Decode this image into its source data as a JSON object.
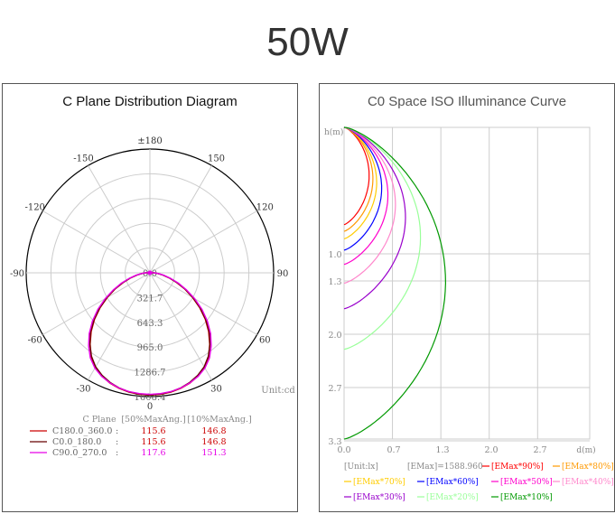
{
  "header": {
    "title": "50W"
  },
  "chart_data": [
    {
      "type": "polar",
      "title": "C Plane Distribution Diagram",
      "unit_label": "Unit:cd",
      "angle_labels": [
        "±180",
        "150",
        "120",
        "90",
        "60",
        "30",
        "0",
        "-30",
        "-60",
        "-90",
        "-120",
        "-150"
      ],
      "radial_labels": [
        "0.0",
        "321.7",
        "643.3",
        "965.0",
        "1286.7",
        "1608.4"
      ],
      "rmax": 1608.4,
      "legend_header": [
        "C Plane",
        "[50%MaxAng.]",
        "[10%MaxAng.]"
      ],
      "series": [
        {
          "name": "C180.0_360.0",
          "sep": ":",
          "half_angle": "115.6",
          "tenth_angle": "146.8",
          "color": "#cc0000",
          "label_color": "#cc0000",
          "points": [
            [
              0,
              1590
            ],
            [
              5,
              1585
            ],
            [
              10,
              1575
            ],
            [
              15,
              1555
            ],
            [
              20,
              1525
            ],
            [
              25,
              1480
            ],
            [
              30,
              1420
            ],
            [
              35,
              1330
            ],
            [
              40,
              1210
            ],
            [
              45,
              1080
            ],
            [
              50,
              940
            ],
            [
              55,
              790
            ],
            [
              60,
              640
            ],
            [
              65,
              500
            ],
            [
              70,
              370
            ],
            [
              75,
              260
            ],
            [
              80,
              170
            ],
            [
              85,
              100
            ],
            [
              90,
              50
            ],
            [
              95,
              20
            ],
            [
              100,
              5
            ],
            [
              105,
              0
            ]
          ]
        },
        {
          "name": "C0.0_180.0",
          "sep": ":",
          "half_angle": "115.6",
          "tenth_angle": "146.8",
          "color": "#660000",
          "label_color": "#cc0000",
          "points": [
            [
              0,
              1588
            ],
            [
              5,
              1582
            ],
            [
              10,
              1570
            ],
            [
              15,
              1548
            ],
            [
              20,
              1515
            ],
            [
              25,
              1470
            ],
            [
              30,
              1410
            ],
            [
              35,
              1325
            ],
            [
              40,
              1215
            ],
            [
              45,
              1090
            ],
            [
              50,
              950
            ],
            [
              55,
              800
            ],
            [
              60,
              650
            ],
            [
              65,
              510
            ],
            [
              70,
              380
            ],
            [
              75,
              270
            ],
            [
              80,
              175
            ],
            [
              85,
              105
            ],
            [
              90,
              55
            ],
            [
              95,
              22
            ],
            [
              100,
              6
            ],
            [
              105,
              0
            ]
          ]
        },
        {
          "name": "C90.0_270.0",
          "sep": ":",
          "half_angle": "117.6",
          "tenth_angle": "151.3",
          "color": "#e600e6",
          "label_color": "#e600e6",
          "points": [
            [
              0,
              1580
            ],
            [
              5,
              1576
            ],
            [
              10,
              1568
            ],
            [
              15,
              1550
            ],
            [
              20,
              1522
            ],
            [
              25,
              1485
            ],
            [
              30,
              1430
            ],
            [
              35,
              1350
            ],
            [
              40,
              1240
            ],
            [
              45,
              1115
            ],
            [
              50,
              975
            ],
            [
              55,
              825
            ],
            [
              60,
              670
            ],
            [
              65,
              525
            ],
            [
              70,
              395
            ],
            [
              75,
              280
            ],
            [
              80,
              185
            ],
            [
              85,
              110
            ],
            [
              90,
              58
            ],
            [
              95,
              24
            ],
            [
              100,
              7
            ],
            [
              105,
              0
            ]
          ]
        }
      ]
    },
    {
      "type": "line",
      "title": "C0 Space ISO Illuminance Curve",
      "ylabel": "h(m)",
      "xlabel": "d(m)",
      "x_ticks": [
        "0.0",
        "0.7",
        "1.3",
        "2.0",
        "2.7"
      ],
      "y_ticks": [
        "1.0",
        "1.3",
        "2.0",
        "2.7",
        "3.3"
      ],
      "xlim": [
        0,
        3.3
      ],
      "ylim": [
        0,
        3.3
      ],
      "legend": [
        {
          "label": "[Unit:lx]",
          "color": "#888888",
          "marker": false
        },
        {
          "label": "[EMax]=1588.960",
          "color": "#888888",
          "marker": false
        },
        {
          "label": "[EMax*90%]",
          "color": "#ff0000",
          "marker": true
        },
        {
          "label": "[EMax*80%]",
          "color": "#ff9900",
          "marker": true
        },
        {
          "label": "[EMax*70%]",
          "color": "#ffcc00",
          "marker": true
        },
        {
          "label": "[EMax*60%]",
          "color": "#0000ff",
          "marker": true
        },
        {
          "label": "[EMax*50%]",
          "color": "#ff00cc",
          "marker": true
        },
        {
          "label": "[EMax*40%]",
          "color": "#ff88cc",
          "marker": true
        },
        {
          "label": "[EMax*30%]",
          "color": "#9900cc",
          "marker": true
        },
        {
          "label": "[EMax*20%]",
          "color": "#99ff99",
          "marker": true
        },
        {
          "label": "[EMax*10%]",
          "color": "#009900",
          "marker": true
        }
      ],
      "series": [
        {
          "pct": 90,
          "color": "#ff0000",
          "depth": 1.03,
          "width": 0.4
        },
        {
          "pct": 80,
          "color": "#ff9900",
          "depth": 1.1,
          "width": 0.46
        },
        {
          "pct": 70,
          "color": "#ffcc00",
          "depth": 1.18,
          "width": 0.52
        },
        {
          "pct": 60,
          "color": "#0000ff",
          "depth": 1.3,
          "width": 0.6
        },
        {
          "pct": 50,
          "color": "#ff00cc",
          "depth": 1.45,
          "width": 0.7
        },
        {
          "pct": 40,
          "color": "#ff88cc",
          "depth": 1.65,
          "width": 0.82
        },
        {
          "pct": 30,
          "color": "#9900cc",
          "depth": 1.92,
          "width": 0.98
        },
        {
          "pct": 20,
          "color": "#99ff99",
          "depth": 2.35,
          "width": 1.22
        },
        {
          "pct": 10,
          "color": "#009900",
          "depth": 3.3,
          "width": 1.62
        }
      ]
    }
  ]
}
